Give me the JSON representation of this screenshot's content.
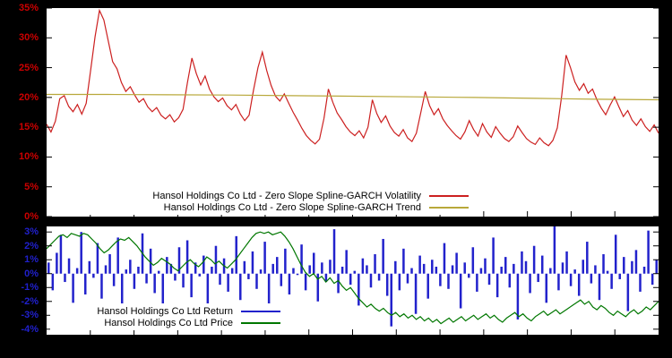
{
  "page": {
    "background": "#000000",
    "plot_background": "#ffffff"
  },
  "chart_data": [
    {
      "type": "line",
      "title": "",
      "xlabel": "",
      "ylabel": "",
      "ylim": [
        0,
        35
      ],
      "yticks": [
        0,
        5,
        10,
        15,
        20,
        25,
        30,
        35
      ],
      "ytick_suffix": "%",
      "axis_label_color": "#cc0000",
      "grid": false,
      "legend_position": "inside-bottom-left",
      "series": [
        {
          "name": "Hansol Holdings Co Ltd - Zero Slope Spline-GARCH Volatility",
          "type": "line",
          "color": "#cc2020",
          "values": [
            15.5,
            14.2,
            16.0,
            19.8,
            20.3,
            18.5,
            17.6,
            18.8,
            17.2,
            19.0,
            24.5,
            30.2,
            34.6,
            33.0,
            29.5,
            26.0,
            24.8,
            22.5,
            21.0,
            21.8,
            20.4,
            19.2,
            19.8,
            18.4,
            17.6,
            18.3,
            17.0,
            16.4,
            17.1,
            15.9,
            16.6,
            18.0,
            22.5,
            26.6,
            24.0,
            22.1,
            23.6,
            21.4,
            20.1,
            19.3,
            19.9,
            18.6,
            17.9,
            18.8,
            17.2,
            16.1,
            17.0,
            21.2,
            25.0,
            27.6,
            24.5,
            22.0,
            20.2,
            19.4,
            20.6,
            19.0,
            17.5,
            16.2,
            14.8,
            13.6,
            12.8,
            12.2,
            13.0,
            16.5,
            21.4,
            19.2,
            17.4,
            16.3,
            15.1,
            14.2,
            13.6,
            14.4,
            13.2,
            15.0,
            19.6,
            17.3,
            15.8,
            16.9,
            15.2,
            14.1,
            13.5,
            14.6,
            13.2,
            12.6,
            14.0,
            17.5,
            21.0,
            18.6,
            17.1,
            18.1,
            16.4,
            15.3,
            14.4,
            13.6,
            13.0,
            14.2,
            16.1,
            14.6,
            13.5,
            15.6,
            14.2,
            13.3,
            15.1,
            14.0,
            13.1,
            12.6,
            13.4,
            15.2,
            14.1,
            13.1,
            12.5,
            12.1,
            13.2,
            12.4,
            11.9,
            12.8,
            14.9,
            20.3,
            27.1,
            25.0,
            22.6,
            21.2,
            22.3,
            20.7,
            21.4,
            19.6,
            18.2,
            17.1,
            18.7,
            20.1,
            18.4,
            16.8,
            17.8,
            16.2,
            15.3,
            16.4,
            15.1,
            14.3,
            15.4,
            14.0
          ]
        },
        {
          "name": "Hansol Holdings Co Ltd - Zero Slope Spline-GARCH Trend",
          "type": "line",
          "color": "#b8a83a",
          "values": [
            20.5,
            20.5,
            20.45,
            20.4,
            20.3,
            20.2,
            20.1,
            20.0,
            19.85,
            19.7,
            19.6
          ]
        }
      ]
    },
    {
      "type": "mixed",
      "title": "",
      "xlabel": "",
      "ylabel": "",
      "ylim": [
        -4.4,
        3.4
      ],
      "yticks": [
        -4,
        -3,
        -2,
        -1,
        0,
        1,
        2,
        3
      ],
      "ytick_suffix": "%",
      "axis_label_color": "#2020cc",
      "grid": false,
      "legend_position": "inside-bottom-left",
      "series": [
        {
          "name": "Hansol Holdings Co Ltd Return",
          "type": "bar",
          "color": "#2222cc",
          "values": [
            0.8,
            -1.2,
            1.5,
            2.8,
            -0.6,
            1.1,
            -2.1,
            0.4,
            3.0,
            -1.5,
            0.9,
            -0.3,
            2.2,
            -1.8,
            0.6,
            1.4,
            -0.9,
            2.6,
            -2.4,
            0.3,
            1.0,
            -1.1,
            0.5,
            2.9,
            -0.7,
            1.8,
            -1.4,
            0.2,
            -2.8,
            1.2,
            0.7,
            -0.5,
            1.9,
            -1.0,
            2.4,
            -1.7,
            0.8,
            -0.2,
            1.3,
            -2.2,
            0.5,
            2.0,
            -0.8,
            1.1,
            -1.3,
            0.4,
            2.7,
            -1.9,
            0.9,
            -0.4,
            1.6,
            -1.1,
            0.3,
            2.3,
            -2.6,
            0.7,
            1.2,
            -0.9,
            1.8,
            -1.5,
            0.4,
            -0.1,
            2.1,
            -1.2,
            0.6,
            1.5,
            -2.0,
            0.8,
            -0.6,
            1.0,
            3.2,
            -1.4,
            0.5,
            1.7,
            -0.8,
            0.2,
            -2.3,
            1.1,
            0.6,
            -1.0,
            1.4,
            -0.5,
            2.5,
            -1.6,
            -3.8,
            0.9,
            -1.2,
            1.8,
            -0.7,
            0.4,
            -2.9,
            1.3,
            0.7,
            -1.8,
            1.0,
            0.5,
            -0.9,
            2.2,
            -1.1,
            0.6,
            1.5,
            -2.5,
            0.8,
            -0.3,
            1.9,
            -1.3,
            0.4,
            1.1,
            -0.8,
            2.6,
            -1.7,
            0.5,
            1.2,
            -1.0,
            0.7,
            -3.3,
            1.6,
            0.9,
            -1.4,
            2.0,
            -0.6,
            1.3,
            -2.1,
            0.4,
            3.4,
            -1.2,
            0.8,
            1.6,
            -0.9,
            0.3,
            -1.6,
            1.0,
            2.3,
            -0.7,
            0.6,
            -1.9,
            1.4,
            0.2,
            -1.1,
            2.8,
            -0.4,
            1.2,
            -2.7,
            0.9,
            1.7,
            -1.3,
            0.5,
            3.1,
            -0.8,
            1.0
          ]
        },
        {
          "name": "Hansol Holdings Co Ltd Price",
          "type": "line",
          "color": "#007700",
          "values": [
            1.8,
            2.1,
            2.4,
            2.7,
            2.8,
            2.6,
            2.9,
            2.8,
            2.7,
            2.9,
            2.8,
            2.5,
            2.2,
            1.8,
            1.5,
            1.7,
            2.0,
            2.3,
            2.5,
            2.4,
            2.6,
            2.3,
            2.0,
            1.6,
            1.2,
            0.9,
            0.6,
            0.8,
            1.1,
            0.9,
            0.7,
            0.4,
            0.2,
            0.5,
            0.8,
            1.0,
            0.7,
            0.5,
            0.8,
            1.2,
            1.0,
            0.7,
            0.9,
            0.6,
            0.4,
            0.7,
            1.0,
            1.4,
            1.8,
            2.2,
            2.6,
            2.9,
            3.0,
            2.9,
            3.0,
            2.8,
            2.9,
            3.0,
            2.7,
            2.3,
            1.8,
            1.2,
            0.6,
            0.1,
            -0.2,
            0.0,
            -0.4,
            -0.2,
            -0.6,
            -0.3,
            -0.7,
            -0.5,
            -0.9,
            -1.2,
            -1.0,
            -1.4,
            -1.8,
            -2.1,
            -2.4,
            -2.2,
            -2.5,
            -2.7,
            -2.5,
            -2.8,
            -3.0,
            -2.8,
            -3.1,
            -2.9,
            -3.2,
            -3.0,
            -3.3,
            -3.1,
            -3.4,
            -3.2,
            -3.5,
            -3.3,
            -3.6,
            -3.4,
            -3.2,
            -3.5,
            -3.3,
            -3.1,
            -3.4,
            -3.2,
            -3.0,
            -3.3,
            -3.1,
            -2.9,
            -3.2,
            -3.0,
            -3.3,
            -3.5,
            -3.2,
            -3.0,
            -2.8,
            -3.1,
            -2.9,
            -3.2,
            -3.4,
            -3.1,
            -2.9,
            -2.7,
            -3.0,
            -2.8,
            -2.6,
            -2.9,
            -2.7,
            -2.5,
            -2.3,
            -2.1,
            -1.9,
            -2.2,
            -2.0,
            -2.4,
            -2.6,
            -2.3,
            -2.5,
            -2.8,
            -3.0,
            -2.7,
            -2.9,
            -3.1,
            -2.8,
            -2.6,
            -2.9,
            -2.7,
            -2.4,
            -2.6,
            -2.3,
            -2.0
          ]
        }
      ]
    }
  ]
}
